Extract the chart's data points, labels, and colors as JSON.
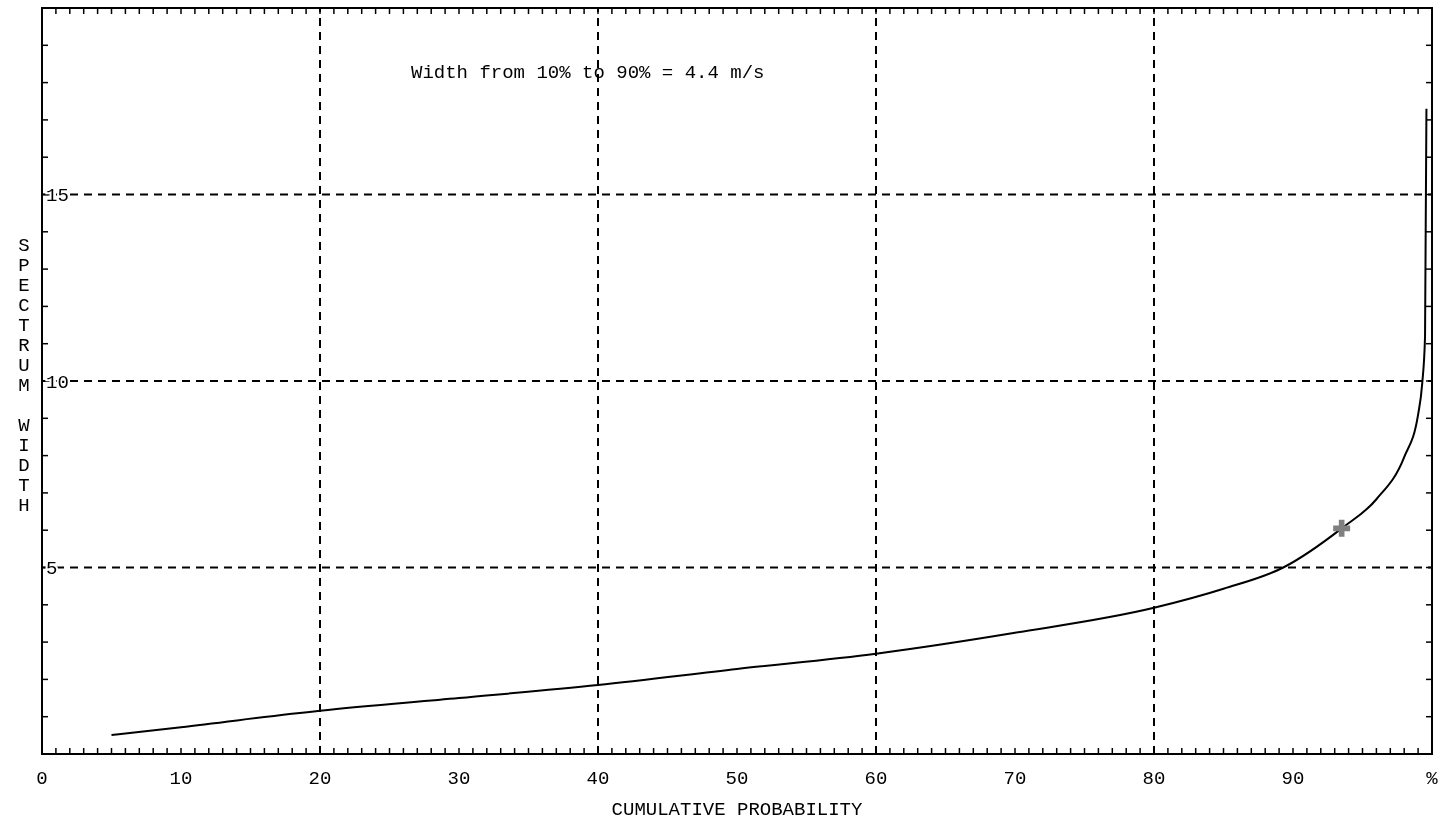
{
  "chart_data": {
    "type": "line",
    "xlabel": "CUMULATIVE PROBABILITY",
    "ylabel": "SPECTRUM WIDTH",
    "annotations": [
      "Width from 10% to 90% = 4.4 m/s"
    ],
    "xlim": [
      0,
      100
    ],
    "ylim": [
      0,
      20
    ],
    "xticks": [
      0,
      {
        "value": 1,
        "label": null
      },
      {
        "value": 2,
        "label": null
      },
      {
        "value": 3,
        "label": null
      },
      {
        "value": 4,
        "label": null
      },
      {
        "value": 5,
        "label": null
      },
      {
        "value": 6,
        "label": null
      },
      {
        "value": 7,
        "label": null
      },
      {
        "value": 8,
        "label": null
      },
      {
        "value": 9,
        "label": null
      },
      10,
      {
        "value": 11,
        "label": null
      },
      {
        "value": 12,
        "label": null
      },
      {
        "value": 13,
        "label": null
      },
      {
        "value": 14,
        "label": null
      },
      {
        "value": 15,
        "label": null
      },
      {
        "value": 16,
        "label": null
      },
      {
        "value": 17,
        "label": null
      },
      {
        "value": 18,
        "label": null
      },
      {
        "value": 19,
        "label": null
      },
      20,
      {
        "value": 21,
        "label": null
      },
      {
        "value": 22,
        "label": null
      },
      {
        "value": 23,
        "label": null
      },
      {
        "value": 24,
        "label": null
      },
      {
        "value": 25,
        "label": null
      },
      {
        "value": 26,
        "label": null
      },
      {
        "value": 27,
        "label": null
      },
      {
        "value": 28,
        "label": null
      },
      {
        "value": 29,
        "label": null
      },
      30,
      {
        "value": 31,
        "label": null
      },
      {
        "value": 32,
        "label": null
      },
      {
        "value": 33,
        "label": null
      },
      {
        "value": 34,
        "label": null
      },
      {
        "value": 35,
        "label": null
      },
      {
        "value": 36,
        "label": null
      },
      {
        "value": 37,
        "label": null
      },
      {
        "value": 38,
        "label": null
      },
      {
        "value": 39,
        "label": null
      },
      40,
      {
        "value": 41,
        "label": null
      },
      {
        "value": 42,
        "label": null
      },
      {
        "value": 43,
        "label": null
      },
      {
        "value": 44,
        "label": null
      },
      {
        "value": 45,
        "label": null
      },
      {
        "value": 46,
        "label": null
      },
      {
        "value": 47,
        "label": null
      },
      {
        "value": 48,
        "label": null
      },
      {
        "value": 49,
        "label": null
      },
      50,
      {
        "value": 51,
        "label": null
      },
      {
        "value": 52,
        "label": null
      },
      {
        "value": 53,
        "label": null
      },
      {
        "value": 54,
        "label": null
      },
      {
        "value": 55,
        "label": null
      },
      {
        "value": 56,
        "label": null
      },
      {
        "value": 57,
        "label": null
      },
      {
        "value": 58,
        "label": null
      },
      {
        "value": 59,
        "label": null
      },
      60,
      {
        "value": 61,
        "label": null
      },
      {
        "value": 62,
        "label": null
      },
      {
        "value": 63,
        "label": null
      },
      {
        "value": 64,
        "label": null
      },
      {
        "value": 65,
        "label": null
      },
      {
        "value": 66,
        "label": null
      },
      {
        "value": 67,
        "label": null
      },
      {
        "value": 68,
        "label": null
      },
      {
        "value": 69,
        "label": null
      },
      70,
      {
        "value": 71,
        "label": null
      },
      {
        "value": 72,
        "label": null
      },
      {
        "value": 73,
        "label": null
      },
      {
        "value": 74,
        "label": null
      },
      {
        "value": 75,
        "label": null
      },
      {
        "value": 76,
        "label": null
      },
      {
        "value": 77,
        "label": null
      },
      {
        "value": 78,
        "label": null
      },
      {
        "value": 79,
        "label": null
      },
      80,
      {
        "value": 81,
        "label": null
      },
      {
        "value": 82,
        "label": null
      },
      {
        "value": 83,
        "label": null
      },
      {
        "value": 84,
        "label": null
      },
      {
        "value": 85,
        "label": null
      },
      {
        "value": 86,
        "label": null
      },
      {
        "value": 87,
        "label": null
      },
      {
        "value": 88,
        "label": null
      },
      {
        "value": 89,
        "label": null
      },
      90,
      {
        "value": 91,
        "label": null
      },
      {
        "value": 92,
        "label": null
      },
      {
        "value": 93,
        "label": null
      },
      {
        "value": 94,
        "label": null
      },
      {
        "value": 95,
        "label": null
      },
      {
        "value": 96,
        "label": null
      },
      {
        "value": 97,
        "label": null
      },
      {
        "value": 98,
        "label": null
      },
      {
        "value": 99,
        "label": null
      },
      {
        "value": 100,
        "label": "%"
      }
    ],
    "yticks": [
      {
        "value": 0,
        "label": null
      },
      {
        "value": 1,
        "label": null
      },
      {
        "value": 2,
        "label": null
      },
      {
        "value": 3,
        "label": null
      },
      {
        "value": 4,
        "label": null
      },
      5,
      {
        "value": 6,
        "label": null
      },
      {
        "value": 7,
        "label": null
      },
      {
        "value": 8,
        "label": null
      },
      {
        "value": 9,
        "label": null
      },
      10,
      {
        "value": 11,
        "label": null
      },
      {
        "value": 12,
        "label": null
      },
      {
        "value": 13,
        "label": null
      },
      {
        "value": 14,
        "label": null
      },
      15,
      {
        "value": 16,
        "label": null
      },
      {
        "value": 17,
        "label": null
      },
      {
        "value": 18,
        "label": null
      },
      {
        "value": 19,
        "label": null
      },
      {
        "value": 20,
        "label": null
      }
    ],
    "ref_lines": [
      {
        "axis": "x",
        "value": 20,
        "color": "#000000",
        "line_style": "dashed"
      },
      {
        "axis": "x",
        "value": 40,
        "color": "#000000",
        "line_style": "dashed"
      },
      {
        "axis": "x",
        "value": 60,
        "color": "#000000",
        "line_style": "dashed"
      },
      {
        "axis": "x",
        "value": 80,
        "color": "#000000",
        "line_style": "dashed"
      },
      {
        "axis": "y",
        "value": 5,
        "color": "#000000",
        "line_style": "dashed"
      },
      {
        "axis": "y",
        "value": 10,
        "color": "#000000",
        "line_style": "dashed"
      },
      {
        "axis": "y",
        "value": 15,
        "color": "#000000",
        "line_style": "dashed"
      }
    ],
    "series": [
      {
        "color": "#000000",
        "x": [
          5,
          10,
          20,
          30,
          40,
          50,
          60,
          70,
          80,
          85,
          89.3,
          93.5,
          96,
          98,
          99,
          99.3,
          99.5,
          99.6
        ],
        "values": [
          0.51,
          0.72,
          1.16,
          1.5,
          1.85,
          2.28,
          2.69,
          3.25,
          3.92,
          4.43,
          5,
          6.05,
          6.83,
          7.96,
          9.1,
          9.95,
          11.2,
          17.3
        ]
      },
      {
        "type": "scatter",
        "marker": "cross",
        "color": "#808080",
        "x": [
          93.5
        ],
        "values": [
          6.05
        ]
      }
    ],
    "grid": false
  }
}
